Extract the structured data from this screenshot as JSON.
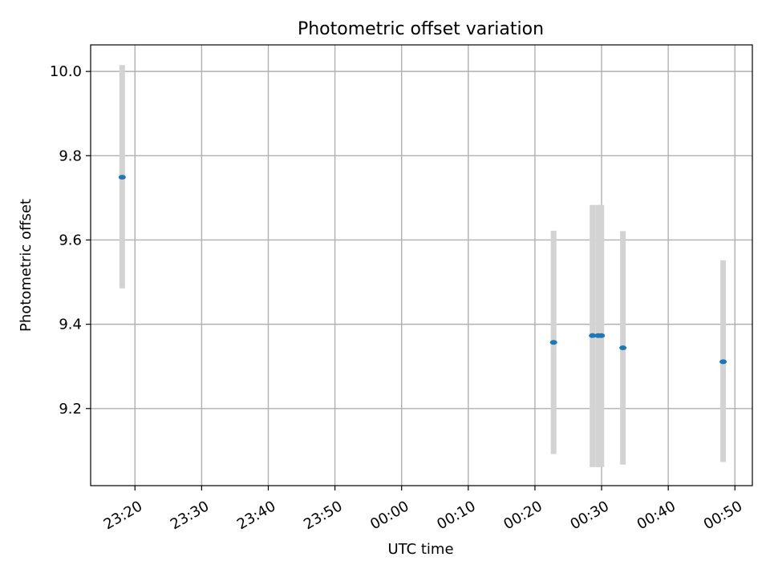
{
  "chart_data": {
    "type": "scatter",
    "title": "Photometric offset variation",
    "xlabel": "UTC time",
    "ylabel": "Photometric offset",
    "grid": true,
    "legend": "none",
    "x_range": [
      "23:13:21",
      "00:52:37"
    ],
    "y_range": [
      9.017,
      10.063
    ],
    "x_ticks": [
      {
        "time": "23:20",
        "label": "23:20"
      },
      {
        "time": "23:30",
        "label": "23:30"
      },
      {
        "time": "23:40",
        "label": "23:40"
      },
      {
        "time": "23:50",
        "label": "23:50"
      },
      {
        "time": "00:00",
        "label": "00:00"
      },
      {
        "time": "00:10",
        "label": "00:10"
      },
      {
        "time": "00:20",
        "label": "00:20"
      },
      {
        "time": "00:30",
        "label": "00:30"
      },
      {
        "time": "00:40",
        "label": "00:40"
      },
      {
        "time": "00:50",
        "label": "00:50"
      }
    ],
    "y_ticks": [
      {
        "value": 9.2,
        "label": "9.2"
      },
      {
        "value": 9.4,
        "label": "9.4"
      },
      {
        "value": 9.6,
        "label": "9.6"
      },
      {
        "value": 9.8,
        "label": "9.8"
      },
      {
        "value": 10.0,
        "label": "10.0"
      }
    ],
    "points": [
      {
        "time": "23:18:05",
        "y": 9.749,
        "ymin": 9.485,
        "ymax": 10.015
      },
      {
        "time": "00:22:48",
        "y": 9.357,
        "ymin": 9.092,
        "ymax": 9.622
      },
      {
        "time": "00:28:38",
        "y": 9.373,
        "ymin": 9.061,
        "ymax": 9.683
      },
      {
        "time": "00:29:29",
        "y": 9.373,
        "ymin": 9.061,
        "ymax": 9.683
      },
      {
        "time": "00:29:58",
        "y": 9.373,
        "ymin": 9.061,
        "ymax": 9.683
      },
      {
        "time": "00:33:12",
        "y": 9.344,
        "ymin": 9.067,
        "ymax": 9.621
      },
      {
        "time": "00:48:14",
        "y": 9.311,
        "ymin": 9.073,
        "ymax": 9.552
      }
    ],
    "colors": {
      "point": "#1f77b4",
      "errorbar": "#d3d3d3",
      "grid": "#b0b0b0"
    }
  }
}
